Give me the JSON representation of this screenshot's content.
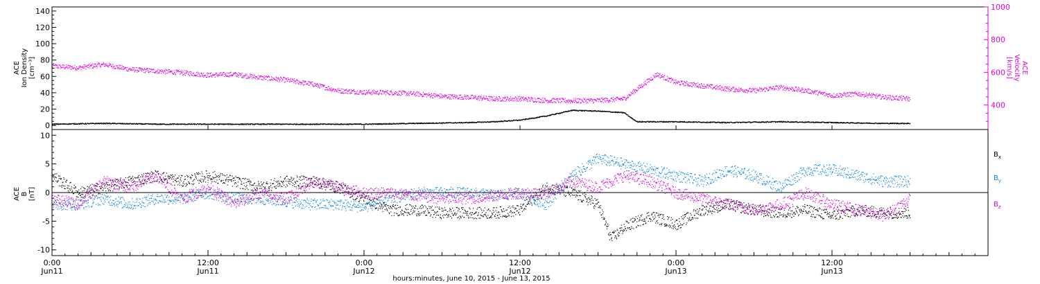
{
  "chart_data": [
    {
      "type": "scatter",
      "panel": "top",
      "title": "",
      "xlabel": "hours:minutes, June 10, 2015 - June 13, 2015",
      "x_unit": "hours from 2015-06-11 00:00",
      "xlim": [
        0,
        72
      ],
      "x_ticks": [
        {
          "x": 0,
          "time": "0:00",
          "date": "Jun11"
        },
        {
          "x": 12,
          "time": "12:00",
          "date": "Jun11"
        },
        {
          "x": 24,
          "time": "0:00",
          "date": "Jun12"
        },
        {
          "x": 36,
          "time": "12:00",
          "date": "Jun12"
        },
        {
          "x": 48,
          "time": "0:00",
          "date": "Jun13"
        },
        {
          "x": 60,
          "time": "12:00",
          "date": "Jun13"
        }
      ],
      "ylabel_left": [
        "ACE",
        "Ion Density",
        "[cm⁻³]"
      ],
      "ylim_left": [
        -5,
        145
      ],
      "yticks_left": [
        "0",
        "20",
        "40",
        "60",
        "80",
        "100",
        "120",
        "140"
      ],
      "ylabel_right": [
        "ACE",
        "Velocity",
        "[km/s]"
      ],
      "ylim_right": [
        250,
        1000
      ],
      "yticks_right": [
        "400",
        "600",
        "800",
        "1000"
      ],
      "right_axis_color": "#dd00dd",
      "series": [
        {
          "axis": "right",
          "color": "#dd00dd",
          "x": [
            0,
            2,
            4,
            6,
            8,
            10,
            12,
            14,
            16,
            18,
            20,
            22,
            24,
            26,
            28,
            30,
            32,
            34,
            36,
            38,
            40,
            42,
            44,
            46,
            46.5,
            48,
            50,
            52,
            54,
            56,
            58,
            60,
            62,
            64,
            66
          ],
          "y": [
            640,
            630,
            650,
            620,
            610,
            600,
            585,
            590,
            570,
            555,
            530,
            490,
            480,
            478,
            470,
            455,
            450,
            440,
            440,
            430,
            428,
            430,
            440,
            560,
            590,
            540,
            520,
            500,
            490,
            510,
            490,
            460,
            470,
            450,
            440
          ]
        },
        {
          "axis": "left",
          "color": "#000000",
          "x": [
            0,
            4,
            8,
            12,
            16,
            20,
            24,
            28,
            32,
            34,
            36,
            38,
            40,
            42,
            44,
            44.5,
            45,
            48,
            52,
            56,
            60,
            64,
            66
          ],
          "y": [
            2,
            3,
            2,
            2,
            2,
            2,
            2,
            3,
            4,
            5,
            7,
            12,
            19,
            18,
            16,
            10,
            5,
            5,
            4,
            5,
            4,
            3,
            3
          ]
        }
      ]
    },
    {
      "type": "scatter",
      "panel": "bottom",
      "title": "",
      "xlim": [
        0,
        72
      ],
      "ylabel_left": [
        "ACE",
        "B",
        "[nT]"
      ],
      "ylim_left": [
        -11,
        11
      ],
      "yticks_left": [
        "-10",
        "-5",
        "0",
        "5",
        "10"
      ],
      "zero_line": true,
      "legend_position": "right",
      "series": [
        {
          "name": "Bx",
          "label_main": "B",
          "label_sub": "x",
          "color": "#000000",
          "x": [
            0,
            2,
            4,
            6,
            8,
            10,
            12,
            14,
            16,
            18,
            20,
            22,
            24,
            26,
            28,
            30,
            32,
            34,
            36,
            38,
            40,
            42,
            43,
            44,
            46,
            48,
            50,
            52,
            54,
            56,
            58,
            60,
            62,
            64,
            66
          ],
          "y": [
            3,
            0,
            1,
            2,
            3,
            2,
            3,
            2,
            1,
            2,
            2,
            1,
            -1,
            -3,
            -3,
            -3.5,
            -3.5,
            -3.5,
            -3,
            1,
            0,
            -2,
            -8,
            -6,
            -4,
            -5.5,
            -3,
            -2,
            -3,
            -3.5,
            -3,
            -4,
            -3,
            -3.5,
            -3.5
          ]
        },
        {
          "name": "By",
          "label_main": "B",
          "label_sub": "y",
          "color": "#1188dd",
          "x": [
            0,
            2,
            4,
            6,
            8,
            10,
            12,
            14,
            16,
            18,
            20,
            22,
            24,
            26,
            28,
            30,
            32,
            34,
            36,
            38,
            40,
            42,
            44,
            46,
            48,
            50,
            52,
            54,
            56,
            58,
            60,
            62,
            64,
            66
          ],
          "y": [
            -2,
            -2,
            -1,
            -2,
            -1,
            -1,
            0,
            -1,
            -1,
            -1.5,
            -2,
            -2,
            -2.5,
            -1,
            0,
            0,
            0,
            -0.5,
            0,
            -2,
            3,
            6,
            5,
            4,
            3,
            2,
            4,
            3,
            1,
            4,
            4,
            3,
            2,
            2
          ]
        },
        {
          "name": "Bz",
          "label_main": "B",
          "label_sub": "z",
          "color": "#dd00dd",
          "x": [
            0,
            2,
            4,
            6,
            8,
            10,
            12,
            14,
            16,
            18,
            20,
            22,
            24,
            26,
            28,
            30,
            32,
            34,
            36,
            38,
            40,
            42,
            44,
            46,
            48,
            50,
            52,
            54,
            56,
            58,
            60,
            62,
            64,
            66
          ],
          "y": [
            -1,
            -2,
            2,
            1,
            3,
            -1,
            1,
            -2,
            0,
            -1,
            2,
            1,
            0,
            0,
            -0.5,
            -1,
            -1,
            -0.5,
            0,
            0,
            2,
            1,
            3,
            2,
            0,
            -1,
            -2,
            -3,
            -2,
            0,
            -2,
            -3,
            -4,
            -1
          ]
        }
      ]
    }
  ]
}
